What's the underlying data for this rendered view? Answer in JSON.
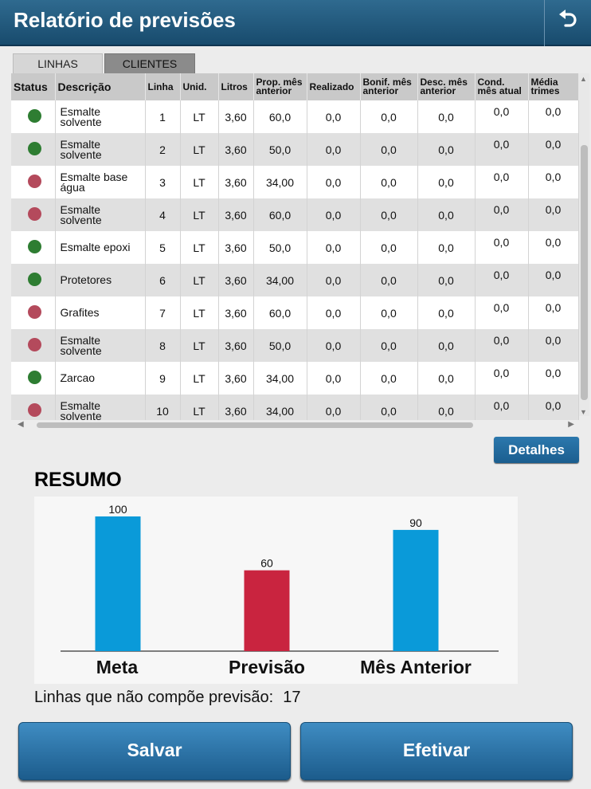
{
  "header": {
    "title": "Relatório de previsões",
    "back_icon": "undo-arrow-icon"
  },
  "tabs": [
    {
      "label": "LINHAS"
    },
    {
      "label": "CLIENTES"
    }
  ],
  "table": {
    "columns": [
      "Status",
      "Descrição",
      "Linha",
      "Unid.",
      "Litros",
      "Prop. mês anterior",
      "Realizado",
      "Bonif. mês anterior",
      "Desc. mês anterior",
      "Cond. mês atual",
      "Média trimes"
    ],
    "rows": [
      {
        "status": "green",
        "descricao": "Esmalte solvente",
        "linha": "1",
        "unid": "LT",
        "litros": "3,60",
        "prop": "60,0",
        "realizado": "0,0",
        "bonif": "0,0",
        "desc": "0,0",
        "cond": "0,0",
        "media": "0,0"
      },
      {
        "status": "green",
        "descricao": "Esmalte solvente",
        "linha": "2",
        "unid": "LT",
        "litros": "3,60",
        "prop": "50,0",
        "realizado": "0,0",
        "bonif": "0,0",
        "desc": "0,0",
        "cond": "0,0",
        "media": "0,0"
      },
      {
        "status": "red",
        "descricao": "Esmalte base água",
        "linha": "3",
        "unid": "LT",
        "litros": "3,60",
        "prop": "34,00",
        "realizado": "0,0",
        "bonif": "0,0",
        "desc": "0,0",
        "cond": "0,0",
        "media": "0,0"
      },
      {
        "status": "red",
        "descricao": "Esmalte solvente",
        "linha": "4",
        "unid": "LT",
        "litros": "3,60",
        "prop": "60,0",
        "realizado": "0,0",
        "bonif": "0,0",
        "desc": "0,0",
        "cond": "0,0",
        "media": "0,0"
      },
      {
        "status": "green",
        "descricao": "Esmalte epoxi",
        "linha": "5",
        "unid": "LT",
        "litros": "3,60",
        "prop": "50,0",
        "realizado": "0,0",
        "bonif": "0,0",
        "desc": "0,0",
        "cond": "0,0",
        "media": "0,0"
      },
      {
        "status": "green",
        "descricao": "Protetores",
        "linha": "6",
        "unid": "LT",
        "litros": "3,60",
        "prop": "34,00",
        "realizado": "0,0",
        "bonif": "0,0",
        "desc": "0,0",
        "cond": "0,0",
        "media": "0,0"
      },
      {
        "status": "red",
        "descricao": "Grafites",
        "linha": "7",
        "unid": "LT",
        "litros": "3,60",
        "prop": "60,0",
        "realizado": "0,0",
        "bonif": "0,0",
        "desc": "0,0",
        "cond": "0,0",
        "media": "0,0"
      },
      {
        "status": "red",
        "descricao": "Esmalte solvente",
        "linha": "8",
        "unid": "LT",
        "litros": "3,60",
        "prop": "50,0",
        "realizado": "0,0",
        "bonif": "0,0",
        "desc": "0,0",
        "cond": "0,0",
        "media": "0,0"
      },
      {
        "status": "green",
        "descricao": "Zarcao",
        "linha": "9",
        "unid": "LT",
        "litros": "3,60",
        "prop": "34,00",
        "realizado": "0,0",
        "bonif": "0,0",
        "desc": "0,0",
        "cond": "0,0",
        "media": "0,0"
      },
      {
        "status": "red",
        "descricao": "Esmalte solvente",
        "linha": "10",
        "unid": "LT",
        "litros": "3,60",
        "prop": "34,00",
        "realizado": "0,0",
        "bonif": "0,0",
        "desc": "0,0",
        "cond": "0,0",
        "media": "0,0"
      }
    ]
  },
  "status_colors": {
    "green": "#2e7d32",
    "red": "#b44a5c"
  },
  "detalhes_label": "Detalhes",
  "resumo_title": "RESUMO",
  "chart_data": {
    "type": "bar",
    "categories": [
      "Meta",
      "Previsão",
      "Mês Anterior"
    ],
    "values": [
      100,
      60,
      90
    ],
    "colors": [
      "#0a9ad9",
      "#c9243f",
      "#0a9ad9"
    ],
    "ylim": [
      0,
      100
    ],
    "grid": false
  },
  "linhas_info": {
    "label": "Linhas que não compõe previsão:",
    "value": "17"
  },
  "buttons": {
    "salvar": "Salvar",
    "efetivar": "Efetivar"
  }
}
